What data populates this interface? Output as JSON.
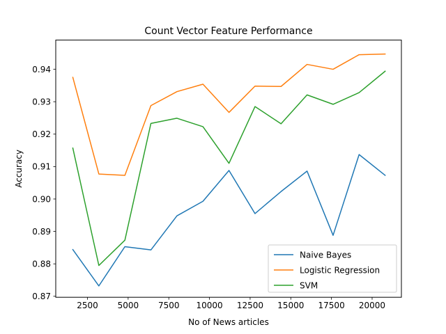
{
  "chart_data": {
    "type": "line",
    "title": "Count Vector Feature Performance",
    "xlabel": "No of News articles",
    "ylabel": "Accuracy",
    "xlim": [
      550,
      21800
    ],
    "ylim": [
      0.8697,
      0.949
    ],
    "xticks": [
      2500,
      5000,
      7500,
      10000,
      12500,
      15000,
      17500,
      20000
    ],
    "xtick_labels": [
      "2500",
      "5000",
      "7500",
      "10000",
      "12500",
      "15000",
      "17500",
      "20000"
    ],
    "yticks": [
      0.87,
      0.88,
      0.89,
      0.9,
      0.91,
      0.92,
      0.93,
      0.94
    ],
    "ytick_labels": [
      "0.87",
      "0.88",
      "0.89",
      "0.90",
      "0.91",
      "0.92",
      "0.93",
      "0.94"
    ],
    "x": [
      1600,
      3200,
      4800,
      6400,
      8000,
      9600,
      11200,
      12800,
      14400,
      16000,
      17600,
      19200,
      20800
    ],
    "series": [
      {
        "name": "Naive Bayes",
        "color": "#1f77b4",
        "values": [
          0.8844,
          0.8732,
          0.8853,
          0.8843,
          0.8948,
          0.8993,
          0.9088,
          0.8955,
          0.9023,
          0.9086,
          0.8888,
          0.9137,
          0.9073
        ]
      },
      {
        "name": "Logistic Regression",
        "color": "#ff7f0e",
        "values": [
          0.9375,
          0.9077,
          0.9073,
          0.9288,
          0.9331,
          0.9354,
          0.9267,
          0.9348,
          0.9347,
          0.9415,
          0.94,
          0.9445,
          0.9447
        ]
      },
      {
        "name": "SVM",
        "color": "#2ca02c",
        "values": [
          0.9157,
          0.8795,
          0.8873,
          0.9233,
          0.9249,
          0.9223,
          0.911,
          0.9285,
          0.9232,
          0.9321,
          0.9292,
          0.9328,
          0.9394
        ]
      }
    ],
    "legend_position": "lower-right",
    "grid": false
  }
}
